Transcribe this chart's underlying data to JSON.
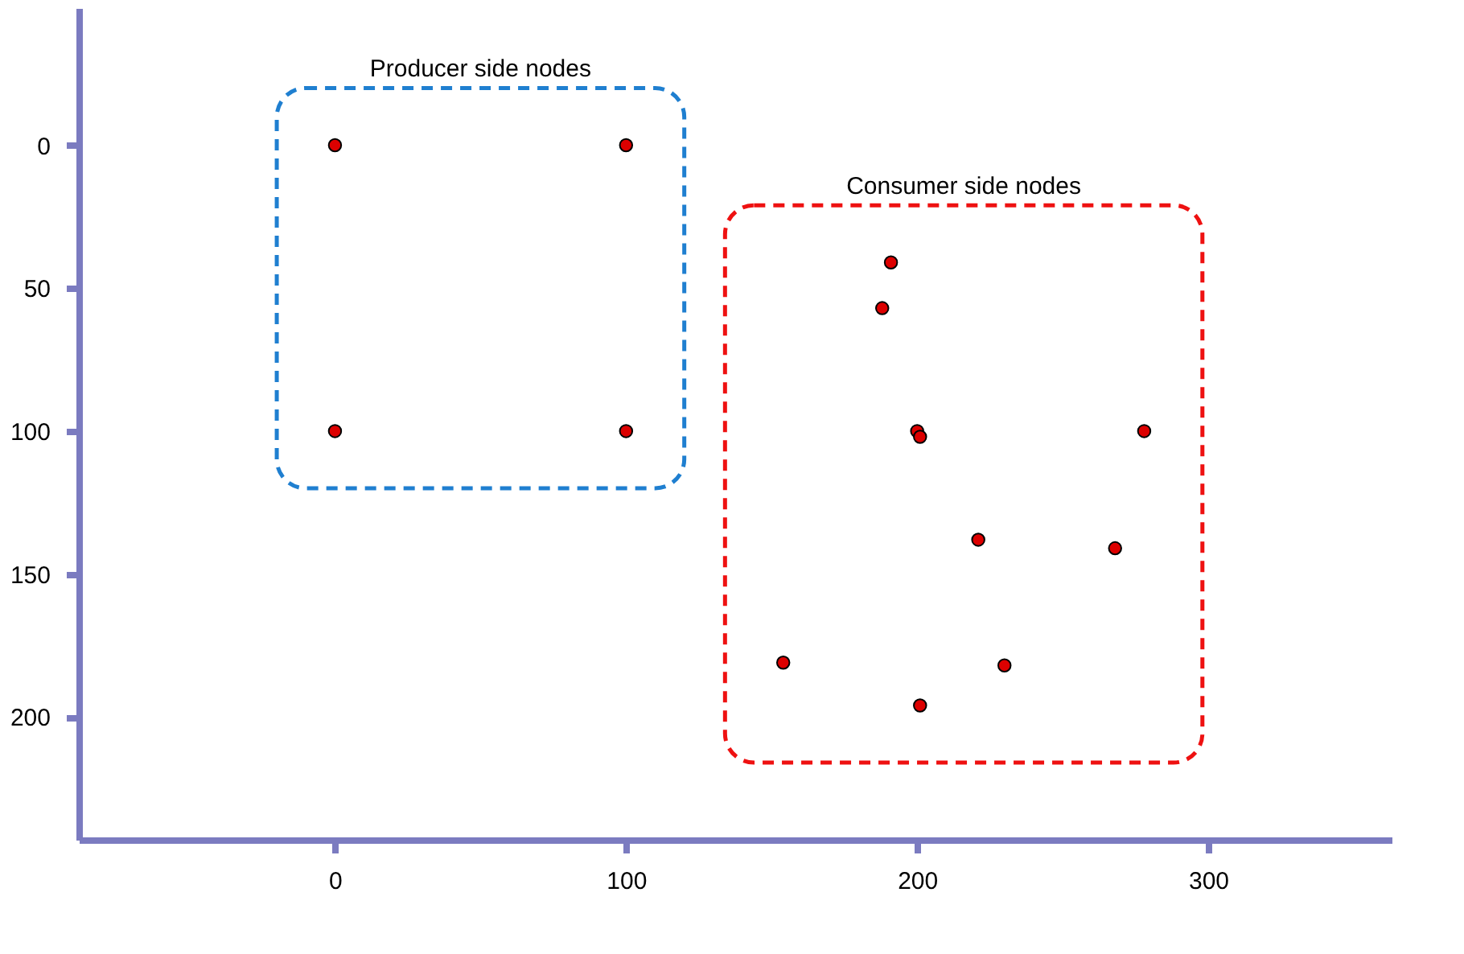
{
  "chart_data": {
    "type": "scatter",
    "xlim": [
      -88,
      363
    ],
    "ylim": [
      243,
      -48
    ],
    "xticks": [
      0,
      100,
      200,
      300
    ],
    "yticks": [
      0,
      50,
      100,
      150,
      200
    ],
    "grid": false,
    "marker": "circle",
    "series": [
      {
        "name": "Producer side nodes",
        "color": "#dd0000",
        "x": [
          0,
          100,
          0,
          100
        ],
        "values": [
          0,
          0,
          100,
          100
        ]
      },
      {
        "name": "Consumer side nodes",
        "color": "#dd0000",
        "x": [
          191,
          188,
          200,
          201,
          278,
          221,
          268,
          154,
          230,
          201
        ],
        "values": [
          41,
          57,
          100,
          102,
          100,
          138,
          141,
          181,
          182,
          196
        ]
      }
    ]
  }
}
